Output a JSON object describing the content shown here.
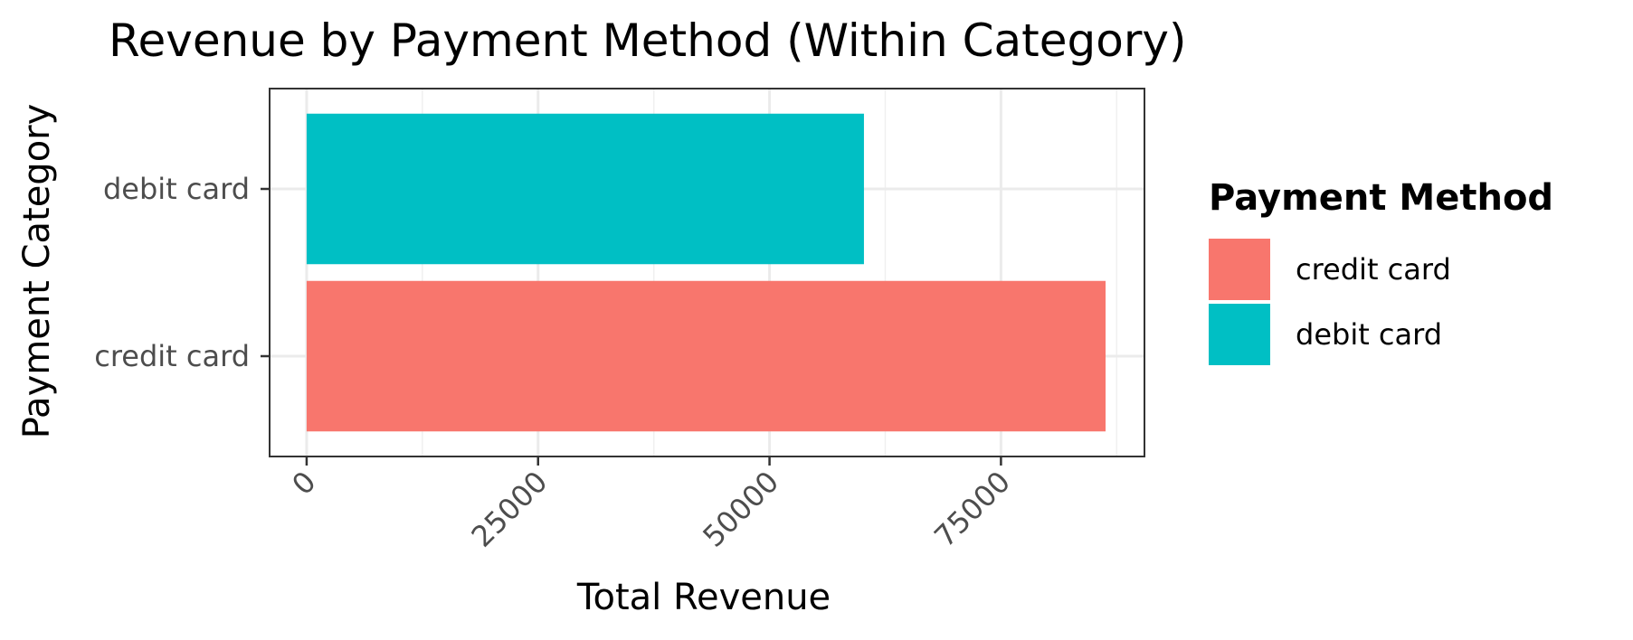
{
  "chart_data": {
    "type": "bar",
    "orientation": "horizontal",
    "title": "Revenue by Payment Method (Within Category)",
    "xlabel": "Total Revenue",
    "ylabel": "Payment Category",
    "categories": [
      "credit card",
      "debit card"
    ],
    "values": [
      86300,
      60200
    ],
    "colors": [
      "#F8766D",
      "#00BFC4"
    ],
    "xlim": [
      -4000,
      90500
    ],
    "x_ticks": [
      0,
      25000,
      50000,
      75000
    ],
    "x_tick_labels": [
      "0",
      "25000",
      "50000",
      "75000"
    ],
    "grid": true,
    "legend": {
      "title": "Payment Method",
      "placement": "right",
      "items": [
        {
          "label": "credit card",
          "color": "#F8766D"
        },
        {
          "label": "debit card",
          "color": "#00BFC4"
        }
      ]
    }
  }
}
